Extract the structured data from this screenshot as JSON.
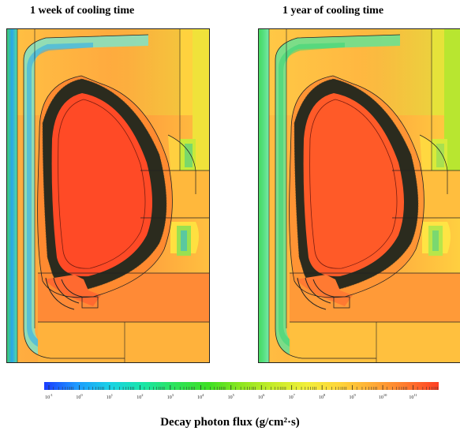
{
  "panels": [
    {
      "title": "1 week of cooling time"
    },
    {
      "title": "1 year of cooling time"
    }
  ],
  "colorbar": {
    "label": "Decay photon flux (g/cm²·s)",
    "exponents": [
      "-1",
      "0",
      "1",
      "2",
      "3",
      "4",
      "5",
      "6",
      "7",
      "8",
      "9",
      "10",
      "11"
    ],
    "colors": [
      "#1a3cff",
      "#1e9bff",
      "#19d2e6",
      "#19e6a8",
      "#2ee35a",
      "#3de024",
      "#8fe620",
      "#c8ec2a",
      "#f2ee3a",
      "#ffd43a",
      "#ffab36",
      "#ff7a2e",
      "#ff3f24"
    ]
  }
}
